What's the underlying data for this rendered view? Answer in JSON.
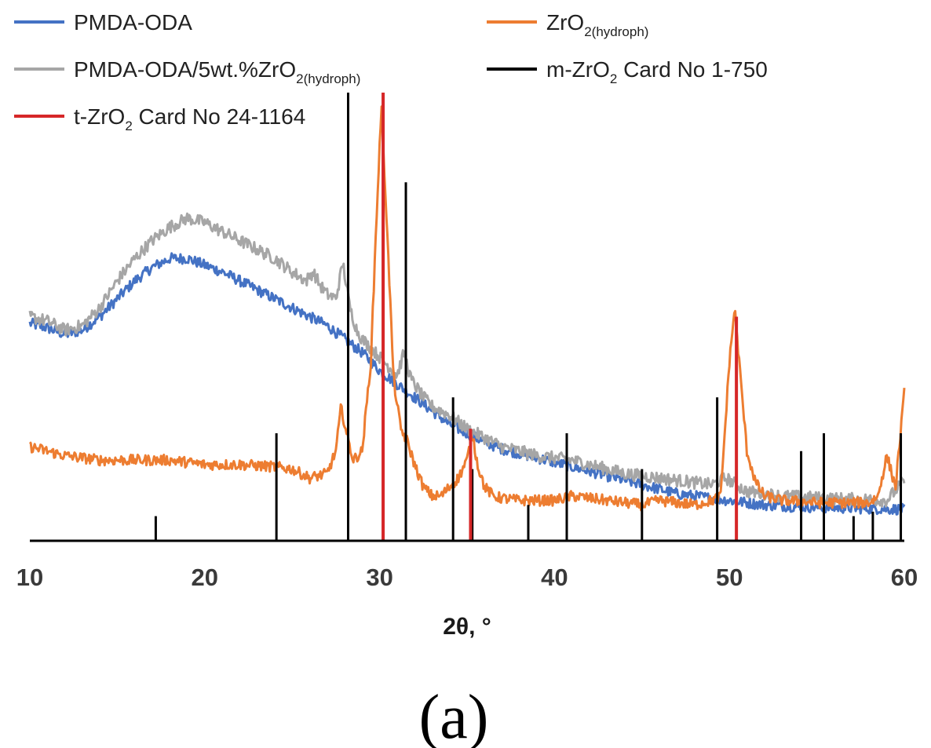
{
  "chart_data": {
    "type": "line",
    "xlabel": "2θ, °",
    "ylabel": "",
    "xlim": [
      10,
      60
    ],
    "ylim": [
      0,
      1
    ],
    "x_ticks": [
      "10",
      "20",
      "30",
      "40",
      "50",
      "60"
    ],
    "grid": false,
    "legend_position": "top",
    "panel_label": "(a)",
    "legend": [
      {
        "series": "pmda_oda",
        "name": "PMDA-ODA",
        "base": "PMDA-ODA",
        "sub": "",
        "rest": ""
      },
      {
        "series": "zro2",
        "name": "ZrO2(hydroph)",
        "base": "ZrO",
        "sub": "2(hydroph)",
        "rest": ""
      },
      {
        "series": "composite",
        "name": "PMDA-ODA/5wt.%ZrO2(hydroph)",
        "base": "PMDA-ODA/5wt.%ZrO",
        "sub": "2(hydroph)",
        "rest": ""
      },
      {
        "series": "m_card",
        "name": "m-ZrO2 Card No 1-750",
        "base": "m-ZrO",
        "sub": "2",
        "rest": " Card No 1-750"
      },
      {
        "series": "t_card",
        "name": "t-ZrO2 Card No 24-1164",
        "base": "t-ZrO",
        "sub": "2",
        "rest": " Card No 24-1164"
      }
    ],
    "series": [
      {
        "id": "pmda_oda",
        "name": "PMDA-ODA",
        "color": "#4472c4",
        "noise": 0.012,
        "x": [
          10,
          11,
          12,
          13,
          14,
          15,
          16,
          17,
          18,
          19,
          20,
          21,
          22,
          23,
          24,
          25,
          26,
          27,
          28,
          29,
          30,
          31,
          32,
          33,
          34,
          35,
          36,
          37,
          38,
          39,
          40,
          41,
          42,
          43,
          44,
          45,
          46,
          47,
          48,
          49,
          50,
          51,
          52,
          53,
          54,
          55,
          56,
          57,
          58,
          59,
          60
        ],
        "values": [
          0.485,
          0.475,
          0.46,
          0.47,
          0.5,
          0.54,
          0.58,
          0.61,
          0.63,
          0.63,
          0.615,
          0.6,
          0.58,
          0.56,
          0.54,
          0.52,
          0.5,
          0.48,
          0.45,
          0.42,
          0.38,
          0.35,
          0.32,
          0.29,
          0.26,
          0.24,
          0.22,
          0.205,
          0.195,
          0.185,
          0.175,
          0.165,
          0.155,
          0.145,
          0.135,
          0.125,
          0.115,
          0.105,
          0.1,
          0.095,
          0.09,
          0.085,
          0.08,
          0.078,
          0.076,
          0.075,
          0.074,
          0.073,
          0.072,
          0.071,
          0.07
        ]
      },
      {
        "id": "composite",
        "name": "PMDA-ODA/5wt.%ZrO2(hydroph)",
        "color": "#a6a6a6",
        "noise": 0.014,
        "x": [
          10,
          11,
          12,
          13,
          14,
          15,
          16,
          17,
          18,
          19,
          20,
          21,
          22,
          23,
          24,
          25,
          25.8,
          26.2,
          26.6,
          27,
          27.5,
          27.9,
          28.3,
          28.7,
          29,
          29.5,
          30,
          30.5,
          31,
          31.4,
          31.8,
          32.5,
          33,
          34,
          35,
          36,
          37,
          38,
          39,
          40,
          41,
          42,
          43,
          44,
          45,
          46,
          47,
          48,
          49,
          49.8,
          50.2,
          50.6,
          51,
          52,
          53,
          54,
          55,
          56,
          57,
          58,
          59,
          60
        ],
        "values": [
          0.5,
          0.49,
          0.47,
          0.48,
          0.52,
          0.58,
          0.63,
          0.67,
          0.7,
          0.72,
          0.71,
          0.69,
          0.67,
          0.65,
          0.63,
          0.6,
          0.58,
          0.6,
          0.57,
          0.55,
          0.54,
          0.62,
          0.52,
          0.47,
          0.45,
          0.43,
          0.41,
          0.39,
          0.37,
          0.42,
          0.36,
          0.32,
          0.3,
          0.28,
          0.25,
          0.23,
          0.21,
          0.2,
          0.19,
          0.185,
          0.18,
          0.17,
          0.16,
          0.15,
          0.145,
          0.14,
          0.135,
          0.13,
          0.125,
          0.14,
          0.13,
          0.12,
          0.11,
          0.105,
          0.1,
          0.098,
          0.096,
          0.094,
          0.093,
          0.092,
          0.09,
          0.135
        ]
      },
      {
        "id": "zro2",
        "name": "ZrO2(hydroph)",
        "color": "#ed7d31",
        "noise": 0.012,
        "x": [
          10,
          12,
          14,
          16,
          18,
          20,
          22,
          24,
          25,
          26,
          27,
          27.5,
          27.8,
          28.1,
          28.5,
          29,
          29.5,
          29.8,
          30.1,
          30.4,
          30.8,
          31.2,
          31.6,
          32,
          32.5,
          33,
          33.5,
          34,
          34.5,
          35,
          35.3,
          35.6,
          36,
          36.5,
          37,
          38,
          39,
          40,
          41,
          42,
          43,
          44,
          45,
          46,
          47,
          48,
          49,
          49.5,
          50,
          50.3,
          50.6,
          51,
          51.5,
          52,
          53,
          54,
          55,
          56,
          57,
          58,
          58.5,
          59,
          59.5,
          60
        ],
        "values": [
          0.21,
          0.19,
          0.18,
          0.18,
          0.18,
          0.17,
          0.17,
          0.165,
          0.16,
          0.14,
          0.15,
          0.2,
          0.3,
          0.24,
          0.18,
          0.2,
          0.4,
          0.7,
          0.97,
          0.72,
          0.36,
          0.25,
          0.22,
          0.17,
          0.12,
          0.1,
          0.1,
          0.12,
          0.14,
          0.18,
          0.24,
          0.17,
          0.12,
          0.1,
          0.095,
          0.09,
          0.09,
          0.09,
          0.1,
          0.095,
          0.09,
          0.085,
          0.08,
          0.09,
          0.085,
          0.08,
          0.09,
          0.1,
          0.4,
          0.52,
          0.38,
          0.2,
          0.13,
          0.1,
          0.09,
          0.088,
          0.085,
          0.085,
          0.085,
          0.085,
          0.1,
          0.19,
          0.12,
          0.33
        ]
      }
    ],
    "reference_cards": [
      {
        "id": "m_card",
        "name": "m-ZrO2 Card No 1-750",
        "color": "#000000",
        "positions": [
          17.2,
          24.1,
          28.2,
          31.5,
          34.2,
          35.3,
          38.5,
          40.7,
          45.0,
          49.3,
          54.1,
          55.4,
          57.1,
          58.2,
          59.8
        ],
        "intensities": [
          0.055,
          0.24,
          1.0,
          0.8,
          0.32,
          0.16,
          0.08,
          0.24,
          0.16,
          0.32,
          0.2,
          0.24,
          0.055,
          0.065,
          0.24
        ]
      },
      {
        "id": "t_card",
        "name": "t-ZrO2 Card No 24-1164",
        "color": "#d62728",
        "positions": [
          30.2,
          35.2,
          50.4
        ],
        "intensities": [
          1.0,
          0.25,
          0.5
        ]
      }
    ]
  }
}
